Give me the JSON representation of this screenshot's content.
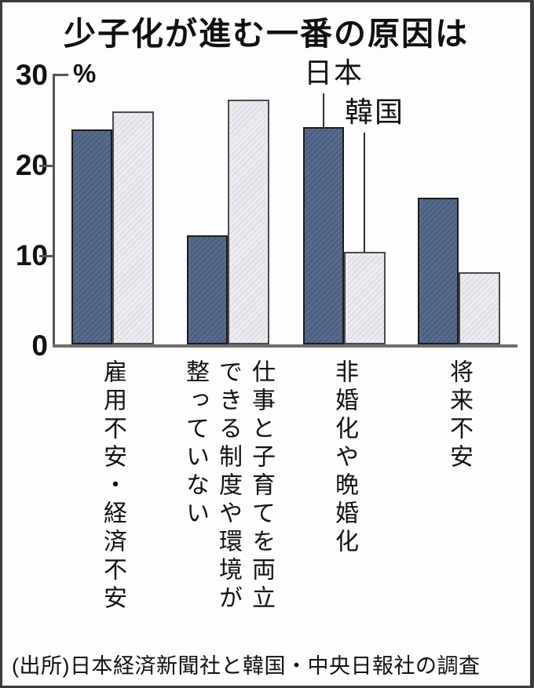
{
  "chart_data": {
    "type": "bar",
    "title": "少子化が進む一番の原因は",
    "unit_label": "%",
    "xlabel": "",
    "ylabel": "%",
    "ylim": [
      0,
      30
    ],
    "yticks": [
      30,
      20,
      10,
      0
    ],
    "grid": false,
    "legend_position": "in-plot annotations with leader lines pointing to bars of the third category",
    "categories": [
      "雇用不安・経済不安",
      "仕事と子育てを両立\nできる制度や環境が\n整っていない",
      "非婚化や晩婚化",
      "将来不安"
    ],
    "series": [
      {
        "name": "日本",
        "color": "#4f6489",
        "values": [
          24.0,
          12.3,
          24.3,
          16.4
        ]
      },
      {
        "name": "韓国",
        "color": "#e2e4eb",
        "values": [
          26.0,
          27.3,
          10.4,
          8.2
        ]
      }
    ],
    "source": "(出所)日本経済新聞社と韓国・中央日報社の調査"
  },
  "style_colors": {
    "axis": "#555555",
    "baseline": "#6e6e6e",
    "leader_line": "#2e2e2e",
    "text": "#111111",
    "japan_bar_border": "#1c1c1c",
    "korea_bar_border": "#4a4a4a",
    "frame_border": "#3c3c3c",
    "background": "#fdfdfd"
  }
}
